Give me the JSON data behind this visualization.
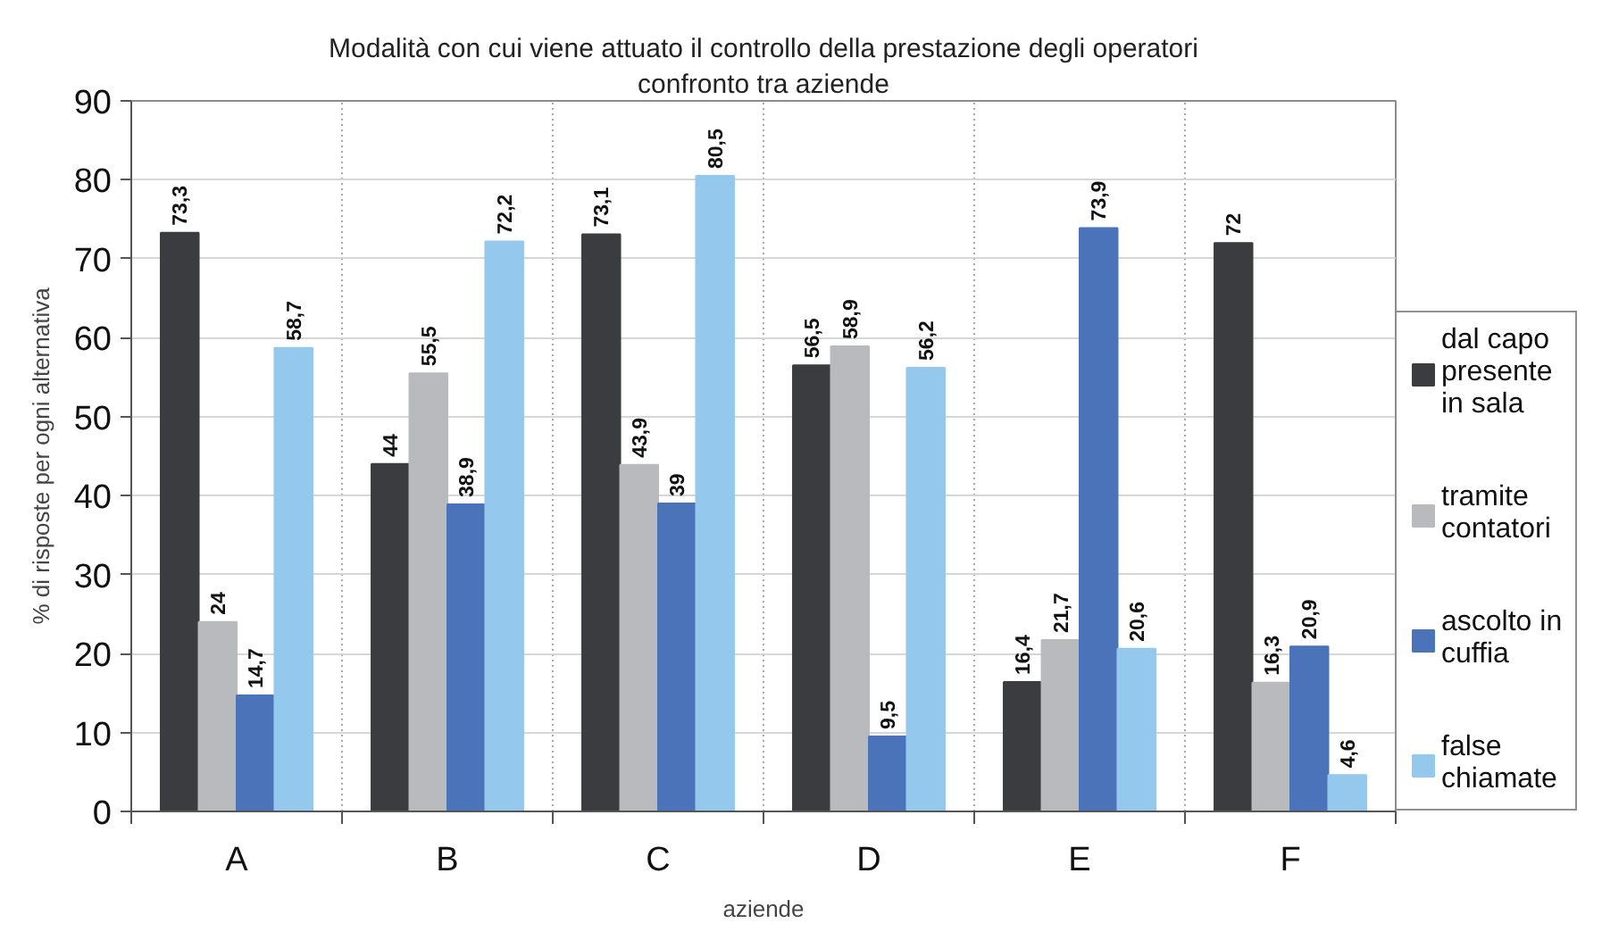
{
  "chart_data": {
    "type": "bar",
    "title": "Modalità con cui viene attuato il controllo della prestazione degli operatori",
    "subtitle": "confronto tra aziende",
    "xlabel": "aziende",
    "ylabel": "% di risposte per ogni alternativa",
    "categories": [
      "A",
      "B",
      "C",
      "D",
      "E",
      "F"
    ],
    "series": [
      {
        "name": "dal capo presente in sala",
        "color": "#3a3c40",
        "values": [
          73.3,
          44,
          73.1,
          56.5,
          16.4,
          72
        ],
        "value_labels": [
          "73,3",
          "44",
          "73,1",
          "56,5",
          "16,4",
          "72"
        ]
      },
      {
        "name": "tramite contatori",
        "color": "#b8babd",
        "values": [
          24,
          55.5,
          43.9,
          58.9,
          21.7,
          16.3
        ],
        "value_labels": [
          "24",
          "55,5",
          "43,9",
          "58,9",
          "21,7",
          "16,3"
        ]
      },
      {
        "name": "ascolto in cuffia",
        "color": "#4a73b9",
        "values": [
          14.7,
          38.9,
          39,
          9.5,
          73.9,
          20.9
        ],
        "value_labels": [
          "14,7",
          "38,9",
          "39",
          "9,5",
          "73,9",
          "20,9"
        ]
      },
      {
        "name": "false chiamate",
        "color": "#94c8ec",
        "values": [
          58.7,
          72.2,
          80.5,
          56.2,
          20.6,
          4.6
        ],
        "value_labels": [
          "58,7",
          "72,2",
          "80,5",
          "56,2",
          "20,6",
          "4,6"
        ]
      }
    ],
    "ylim": [
      0,
      90
    ],
    "yticks": [
      0,
      10,
      20,
      30,
      40,
      50,
      60,
      70,
      80,
      90
    ],
    "grid": true,
    "legend": "right"
  }
}
